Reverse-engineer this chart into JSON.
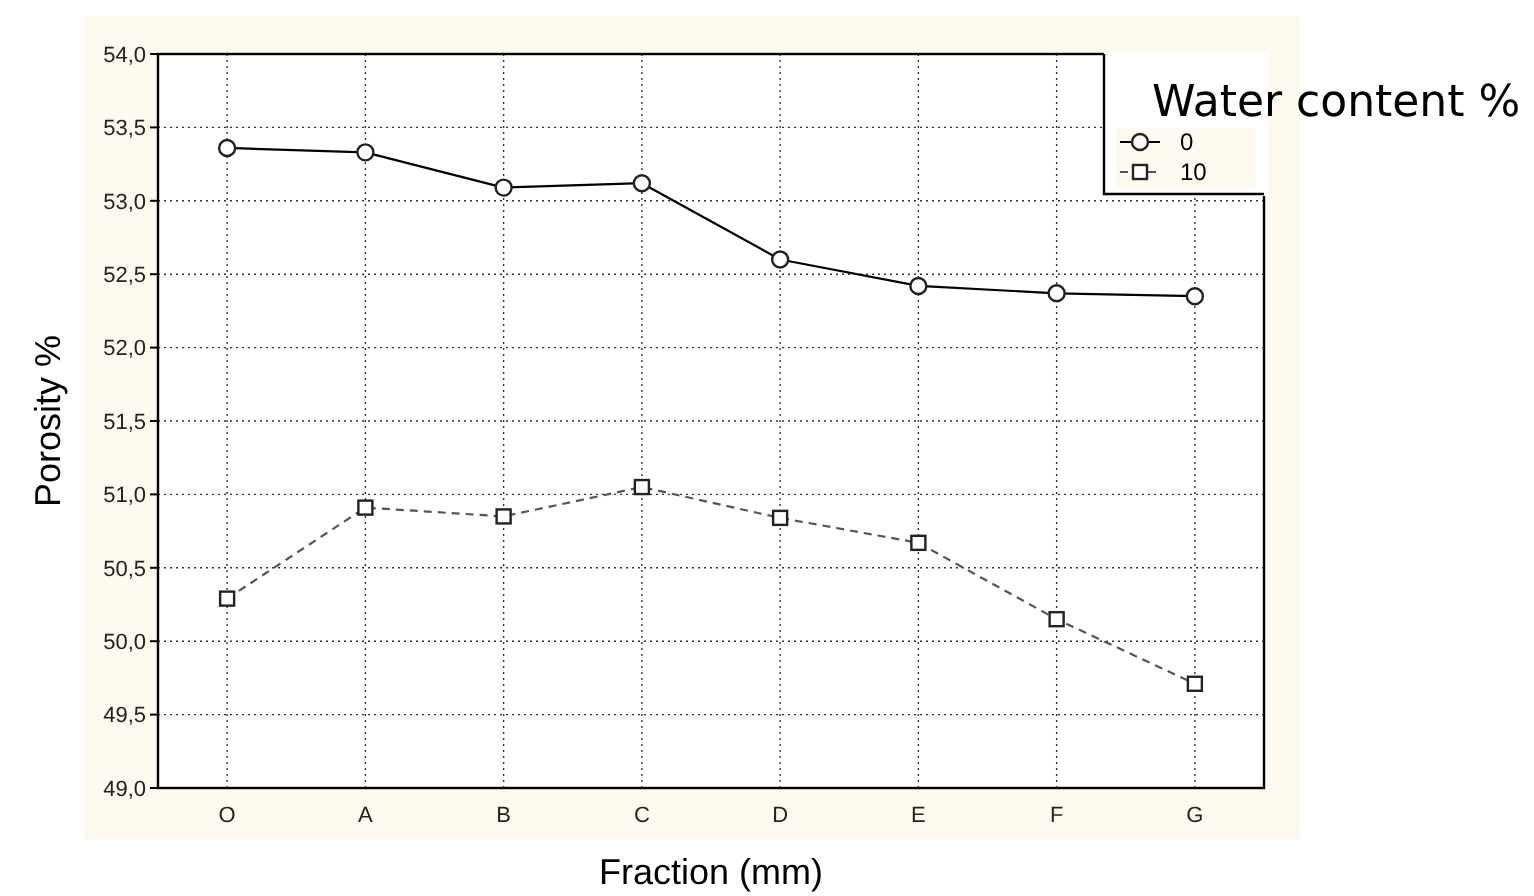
{
  "chart_data": {
    "type": "line",
    "xlabel": "Fraction (mm)",
    "ylabel": "Porosity %",
    "legend_title": "Water content %",
    "legend": "top right",
    "grid": true,
    "categories": [
      "O",
      "A",
      "B",
      "C",
      "D",
      "E",
      "F",
      "G"
    ],
    "ylim": [
      49,
      54
    ],
    "yticks": [
      {
        "value": 49,
        "label": "49,0"
      },
      {
        "value": 49.5,
        "label": "49,5"
      },
      {
        "value": 50,
        "label": "50,0"
      },
      {
        "value": 50.5,
        "label": "50,5"
      },
      {
        "value": 51,
        "label": "51,0"
      },
      {
        "value": 51.5,
        "label": "51,5"
      },
      {
        "value": 52,
        "label": "52,0"
      },
      {
        "value": 52.5,
        "label": "52,5"
      },
      {
        "value": 53,
        "label": "53,0"
      },
      {
        "value": 53.5,
        "label": "53,5"
      },
      {
        "value": 54,
        "label": "54,0"
      }
    ],
    "series": [
      {
        "name": "0",
        "color": "#000000",
        "marker": "circle",
        "line_style": "solid",
        "values": [
          53.36,
          53.33,
          53.09,
          53.12,
          52.6,
          52.42,
          52.37,
          52.35
        ]
      },
      {
        "name": "10",
        "color": "#555555",
        "marker": "square",
        "line_style": "dashed",
        "values": [
          50.29,
          50.91,
          50.85,
          51.05,
          50.84,
          50.67,
          50.15,
          49.71
        ]
      }
    ]
  }
}
